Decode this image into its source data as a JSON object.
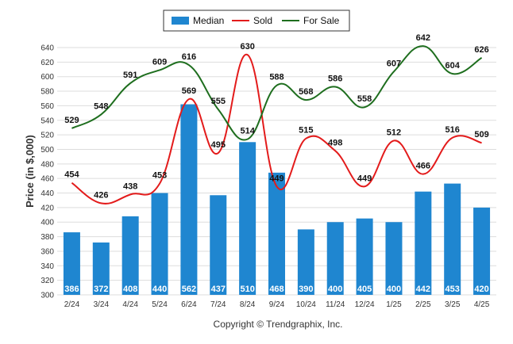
{
  "chart_data": {
    "type": "bar",
    "categories": [
      "2/24",
      "3/24",
      "4/24",
      "5/24",
      "6/24",
      "7/24",
      "8/24",
      "9/24",
      "10/24",
      "11/24",
      "12/24",
      "1/25",
      "2/25",
      "3/25",
      "4/25"
    ],
    "ylabel": "Price (in $,000)",
    "ylim": [
      300,
      640
    ],
    "yticks": [
      300,
      320,
      340,
      360,
      380,
      400,
      420,
      440,
      460,
      480,
      500,
      520,
      540,
      560,
      580,
      600,
      620,
      640
    ],
    "grid": true,
    "legend_position": "top-center",
    "series": [
      {
        "name": "Median",
        "type": "bar",
        "color": "#1f86d0",
        "values": [
          386,
          372,
          408,
          440,
          562,
          437,
          510,
          468,
          390,
          400,
          405,
          400,
          442,
          453,
          420
        ]
      },
      {
        "name": "Sold",
        "type": "line",
        "color": "#e31b1b",
        "values": [
          454,
          426,
          438,
          453,
          569,
          495,
          630,
          449,
          515,
          498,
          449,
          512,
          466,
          516,
          509
        ]
      },
      {
        "name": "For Sale",
        "type": "line",
        "color": "#1e6e1e",
        "values": [
          529,
          548,
          591,
          609,
          616,
          555,
          514,
          588,
          568,
          586,
          558,
          607,
          642,
          604,
          626
        ]
      }
    ]
  },
  "footer": {
    "copyright": "Copyright © Trendgraphix, Inc."
  }
}
